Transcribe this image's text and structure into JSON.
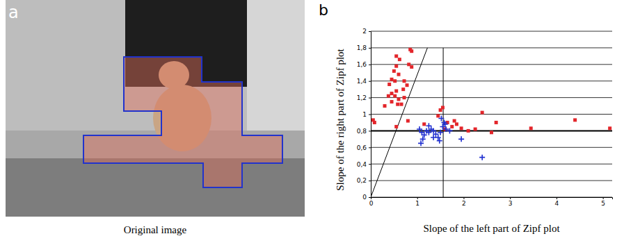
{
  "image_panel": {
    "letter": "a",
    "caption": "Original image"
  },
  "chart_data": {
    "type": "scatter",
    "panel_label": "b",
    "x_label": "Slope of the left part of Zipf plot",
    "y_label": "Slope of the right part of Zipf plot",
    "xlim": [
      0,
      5.2
    ],
    "ylim": [
      0,
      2
    ],
    "xticks": [
      0,
      1,
      2,
      3,
      4,
      5
    ],
    "yticks": [
      0,
      {
        "value": 0.2,
        "label": "0,2"
      },
      {
        "value": 0.4,
        "label": "0,4"
      },
      {
        "value": 0.6,
        "label": "0,6"
      },
      {
        "value": 0.8,
        "label": "0,8"
      },
      1,
      {
        "value": 1.2,
        "label": "1,2"
      },
      {
        "value": 1.4,
        "label": "1,4"
      },
      {
        "value": 1.6,
        "label": "1,6"
      },
      {
        "value": 1.8,
        "label": "1,8"
      },
      2
    ],
    "grid": true,
    "series": [
      {
        "color": "#e3262b",
        "marker": "square",
        "x": [
          0.05,
          0.08,
          0.85,
          0.88,
          0.55,
          0.62,
          0.82,
          0.88,
          0.55,
          0.5,
          0.6,
          0.45,
          0.52,
          0.72,
          0.78,
          0.7,
          0.4,
          0.45,
          0.38,
          0.52,
          0.6,
          0.45,
          0.58,
          0.3,
          0.72,
          0.55,
          0.66,
          0.8,
          0.55,
          1.15,
          1.45,
          1.5,
          1.55,
          1.65,
          1.75,
          1.85,
          1.95,
          2.1,
          2.25,
          2.4,
          2.6,
          2.7,
          3.45,
          4.4,
          5.15,
          1.6,
          1.8
        ],
        "values": [
          0.93,
          0.9,
          1.78,
          1.76,
          1.7,
          1.66,
          1.6,
          1.57,
          1.58,
          1.52,
          1.48,
          1.42,
          1.4,
          1.4,
          1.35,
          1.3,
          1.36,
          1.25,
          1.22,
          1.22,
          1.18,
          1.15,
          1.12,
          1.1,
          1.2,
          1.28,
          1.12,
          0.92,
          0.85,
          0.88,
          0.98,
          1.05,
          1.08,
          0.9,
          0.85,
          0.88,
          0.83,
          0.8,
          0.82,
          1.02,
          0.78,
          0.9,
          0.83,
          0.93,
          0.83,
          0.82,
          0.92
        ]
      },
      {
        "color": "#1f2fd0",
        "marker": "cross",
        "x": [
          1.05,
          1.1,
          1.15,
          1.2,
          1.25,
          1.3,
          1.35,
          1.4,
          1.45,
          1.5,
          1.55,
          1.58,
          1.62,
          1.48,
          1.12,
          1.08,
          1.35,
          1.52,
          1.7,
          1.95,
          2.4,
          1.25,
          1.6
        ],
        "values": [
          0.82,
          0.78,
          0.75,
          0.8,
          0.78,
          0.82,
          0.8,
          0.76,
          0.72,
          0.78,
          0.85,
          0.9,
          0.82,
          0.68,
          0.7,
          0.65,
          0.72,
          0.95,
          0.8,
          0.7,
          0.48,
          0.86,
          0.88
        ]
      }
    ],
    "reference_lines": [
      {
        "x": [
          0,
          1.22
        ],
        "y": [
          0,
          1.8
        ]
      },
      {
        "x": [
          1.56,
          1.56
        ],
        "y": [
          0,
          1.8
        ]
      },
      {
        "x": [
          0,
          5.2
        ],
        "y": [
          0.8,
          0.8
        ]
      }
    ]
  }
}
